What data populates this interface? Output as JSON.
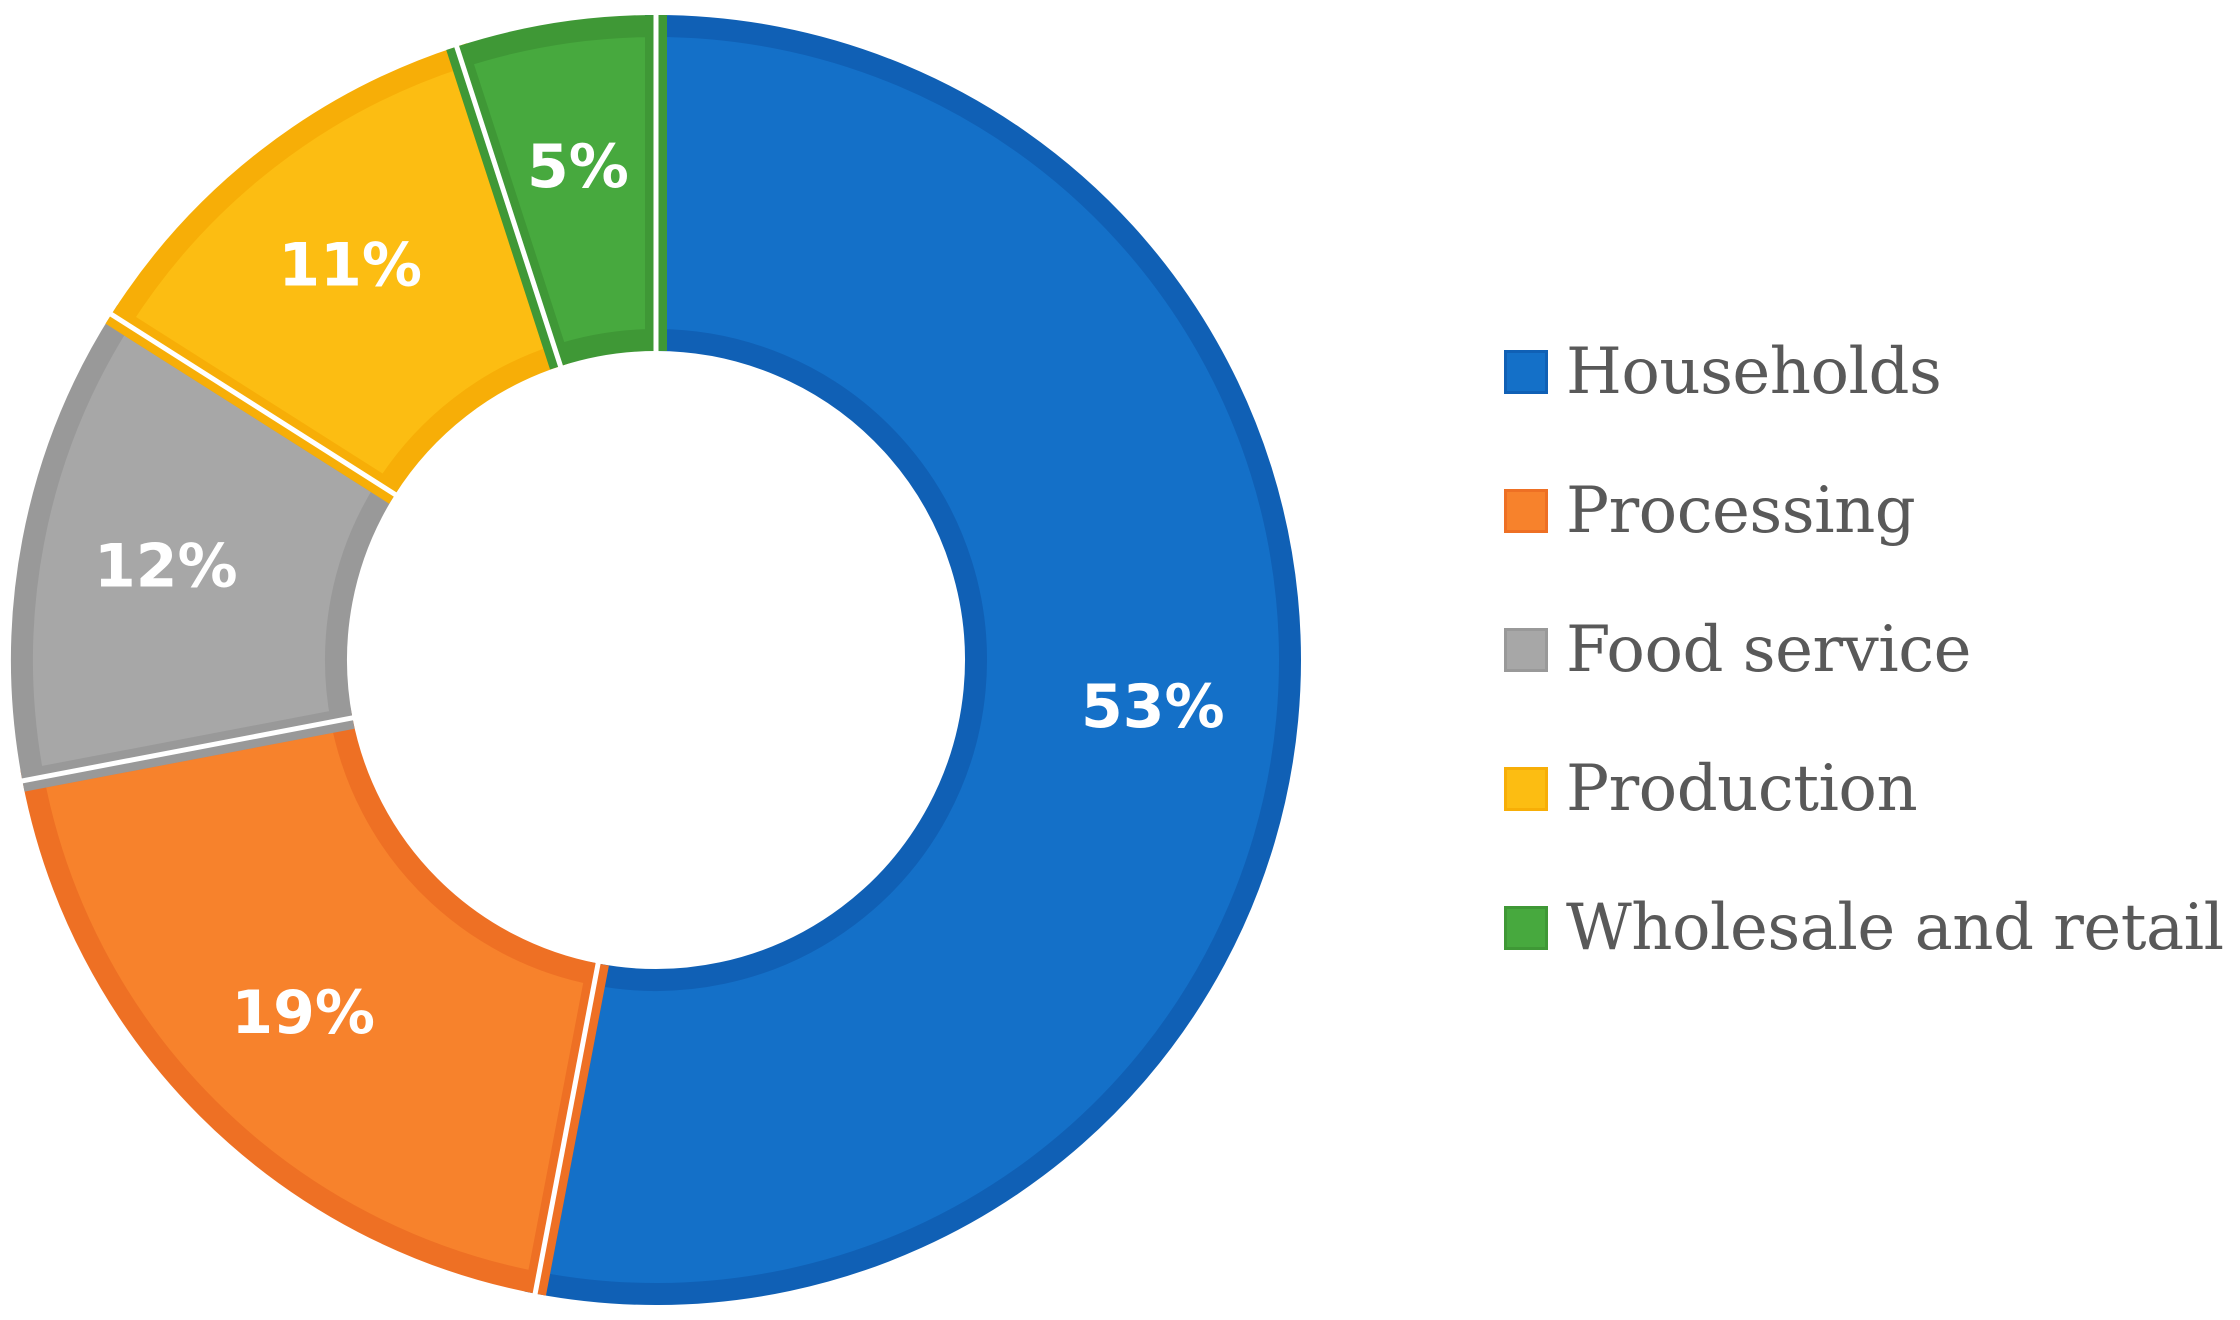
{
  "chart_data": {
    "type": "pie",
    "title": "",
    "donut": true,
    "legend_position": "right",
    "slices": [
      {
        "label": "Households",
        "value": 53,
        "display": "53%",
        "color": "#1470c8",
        "stroke": "#1060b5"
      },
      {
        "label": "Processing",
        "value": 19,
        "display": "19%",
        "color": "#f7822c",
        "stroke": "#ee7024"
      },
      {
        "label": "Food service",
        "value": 12,
        "display": "12%",
        "color": "#a7a7a7",
        "stroke": "#999999"
      },
      {
        "label": "Production",
        "value": 11,
        "display": "11%",
        "color": "#fcbd12",
        "stroke": "#f7ae07"
      },
      {
        "label": "Wholesale and retail",
        "value": 5,
        "display": "5%",
        "color": "#47a93e",
        "stroke": "#3f9836"
      }
    ]
  }
}
